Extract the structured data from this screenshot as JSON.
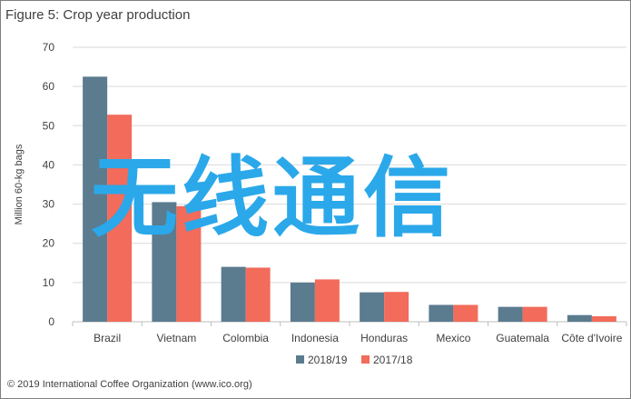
{
  "chart_data": {
    "type": "bar",
    "title": "Figure 5: Crop year production",
    "ylabel": "Million 60-kg bags",
    "xlabel": "",
    "ylim": [
      0,
      70
    ],
    "yticks": [
      0,
      10,
      20,
      30,
      40,
      50,
      60,
      70
    ],
    "grid": true,
    "legend_position": "bottom",
    "categories": [
      "Brazil",
      "Vietnam",
      "Colombia",
      "Indonesia",
      "Honduras",
      "Mexico",
      "Guatemala",
      "Côte d'Ivoire"
    ],
    "series": [
      {
        "name": "2018/19",
        "color": "#5b7b8f",
        "values": [
          62.5,
          30.5,
          14,
          10,
          7.5,
          4.3,
          3.8,
          1.7
        ]
      },
      {
        "name": "2017/18",
        "color": "#f26b5b",
        "values": [
          52.8,
          29.5,
          13.8,
          10.8,
          7.6,
          4.3,
          3.8,
          1.4
        ]
      }
    ]
  },
  "overlay_text": "无线通信",
  "copyright": "© 2019 International Coffee Organization (www.ico.org)"
}
